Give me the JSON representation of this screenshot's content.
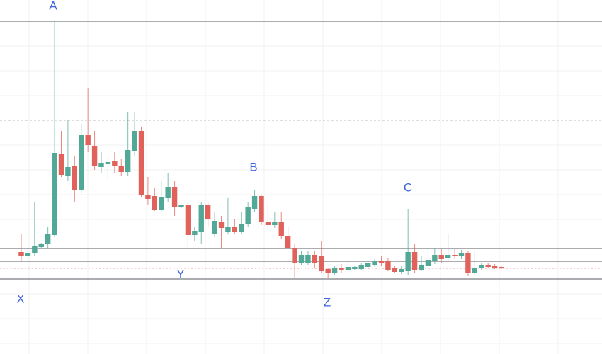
{
  "chart_data": {
    "type": "candlestick",
    "up_color": "#52a896",
    "down_color": "#e0625b",
    "grid": true,
    "ylim": [
      0,
      500
    ],
    "open": [
      144,
      138,
      142,
      151,
      155,
      168,
      282,
      252,
      266,
      232,
      310,
      294,
      264,
      268,
      272,
      266,
      257,
      287,
      315,
      225,
      223,
      204,
      220,
      236,
      207,
      210,
      168,
      173,
      211,
      170,
      187,
      172,
      180,
      172,
      183,
      205,
      223,
      187,
      182,
      187,
      166,
      150,
      128,
      129,
      140,
      139,
      120,
      115,
      121,
      118,
      120,
      120,
      123,
      126,
      131,
      131,
      121,
      116,
      117,
      144,
      119,
      124,
      132,
      140,
      136,
      140,
      138,
      143,
      114,
      122,
      125,
      124,
      123
    ],
    "high": [
      170,
      150,
      215,
      157,
      180,
      470,
      315,
      330,
      280,
      325,
      376,
      315,
      285,
      280,
      285,
      275,
      342,
      342,
      320,
      250,
      235,
      245,
      255,
      245,
      211,
      215,
      180,
      215,
      215,
      200,
      195,
      220,
      190,
      200,
      215,
      232,
      225,
      210,
      200,
      200,
      180,
      155,
      145,
      145,
      145,
      160,
      122,
      124,
      127,
      130,
      124,
      128,
      132,
      134,
      138,
      135,
      124,
      124,
      205,
      155,
      138,
      148,
      150,
      148,
      170,
      148,
      147,
      145,
      145,
      128,
      128,
      127,
      124
    ],
    "low": [
      132,
      135,
      138,
      150,
      150,
      165,
      250,
      245,
      215,
      228,
      285,
      260,
      255,
      245,
      255,
      252,
      252,
      280,
      222,
      210,
      202,
      200,
      215,
      195,
      206,
      150,
      160,
      155,
      180,
      165,
      150,
      170,
      170,
      170,
      180,
      200,
      182,
      177,
      178,
      162,
      148,
      107,
      125,
      125,
      122,
      115,
      107,
      112,
      115,
      115,
      119,
      118,
      120,
      123,
      124,
      117,
      114,
      113,
      112,
      115,
      117,
      122,
      127,
      128,
      132,
      134,
      134,
      110,
      112,
      119,
      122,
      120,
      120
    ],
    "close": [
      138,
      143,
      153,
      156,
      169,
      284,
      253,
      264,
      232,
      310,
      295,
      265,
      270,
      271,
      265,
      257,
      288,
      315,
      224,
      219,
      204,
      222,
      236,
      208,
      210,
      168,
      174,
      211,
      190,
      188,
      178,
      180,
      172,
      184,
      207,
      223,
      187,
      182,
      186,
      166,
      150,
      128,
      140,
      140,
      128,
      117,
      115,
      121,
      118,
      123,
      123,
      125,
      128,
      131,
      128,
      119,
      116,
      120,
      144,
      118,
      126,
      133,
      140,
      134,
      140,
      138,
      143,
      114,
      122,
      126,
      123,
      122,
      121
    ],
    "levels": [
      {
        "value": 470,
        "style": "solid",
        "color": "#555a60"
      },
      {
        "value": 330,
        "style": "dashed",
        "color": "#b8bcc2"
      },
      {
        "value": 149,
        "style": "solid",
        "color": "#555a60"
      },
      {
        "value": 131,
        "style": "solid",
        "color": "#555a60"
      },
      {
        "value": 106,
        "style": "solid",
        "color": "#555a60"
      },
      {
        "value": 121,
        "style": "dotted",
        "color": "#f2a3a3"
      }
    ],
    "annotations": [
      "A",
      "B",
      "C",
      "X",
      "Y",
      "Z"
    ]
  }
}
